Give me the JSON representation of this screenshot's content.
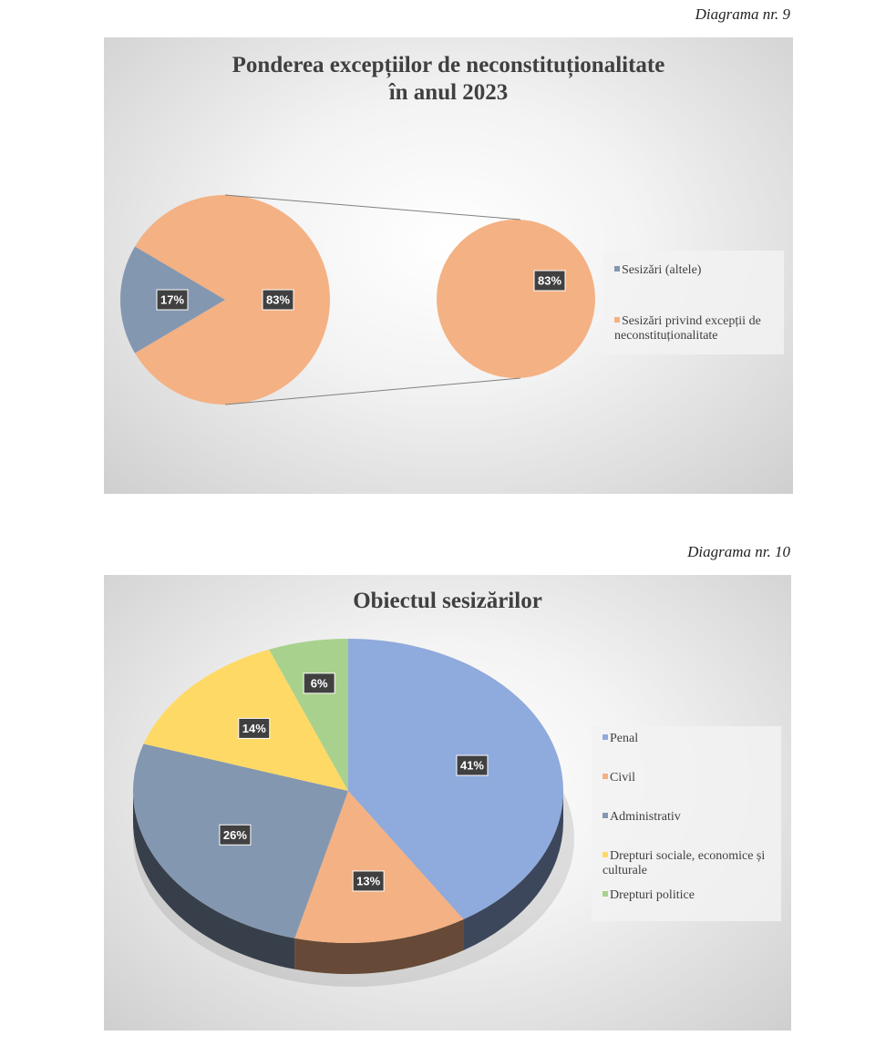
{
  "chart_data": [
    {
      "type": "pie",
      "variant": "pie-of-pie",
      "caption": "Diagrama nr. 9",
      "title": [
        "Ponderea excepțiilor de neconstituționalitate",
        "în anul 2023"
      ],
      "categories": [
        "Sesizări (altele)",
        "Sesizări privind excepții de neconstituționalitate"
      ],
      "values": [
        17,
        83
      ],
      "labels": [
        "17%",
        "83%"
      ],
      "secondary_pie": {
        "categories": [
          "Sesizări privind excepții de neconstituționalitate"
        ],
        "values": [
          83
        ],
        "labels": [
          "83%"
        ]
      },
      "colors": [
        "#8497b0",
        "#f4b183"
      ],
      "legend_position": "right"
    },
    {
      "type": "pie",
      "variant": "3d",
      "caption": "Diagrama nr. 10",
      "title": "Obiectul sesizărilor",
      "categories": [
        "Penal",
        "Civil",
        "Administrativ",
        "Drepturi sociale, economice și culturale",
        "Drepturi politice"
      ],
      "values": [
        41,
        13,
        26,
        14,
        6
      ],
      "labels": [
        "41%",
        "13%",
        "26%",
        "14%",
        "6%"
      ],
      "colors": [
        "#8faadc",
        "#f4b183",
        "#8497b0",
        "#ffd966",
        "#a9d18e"
      ],
      "legend_position": "right"
    }
  ]
}
